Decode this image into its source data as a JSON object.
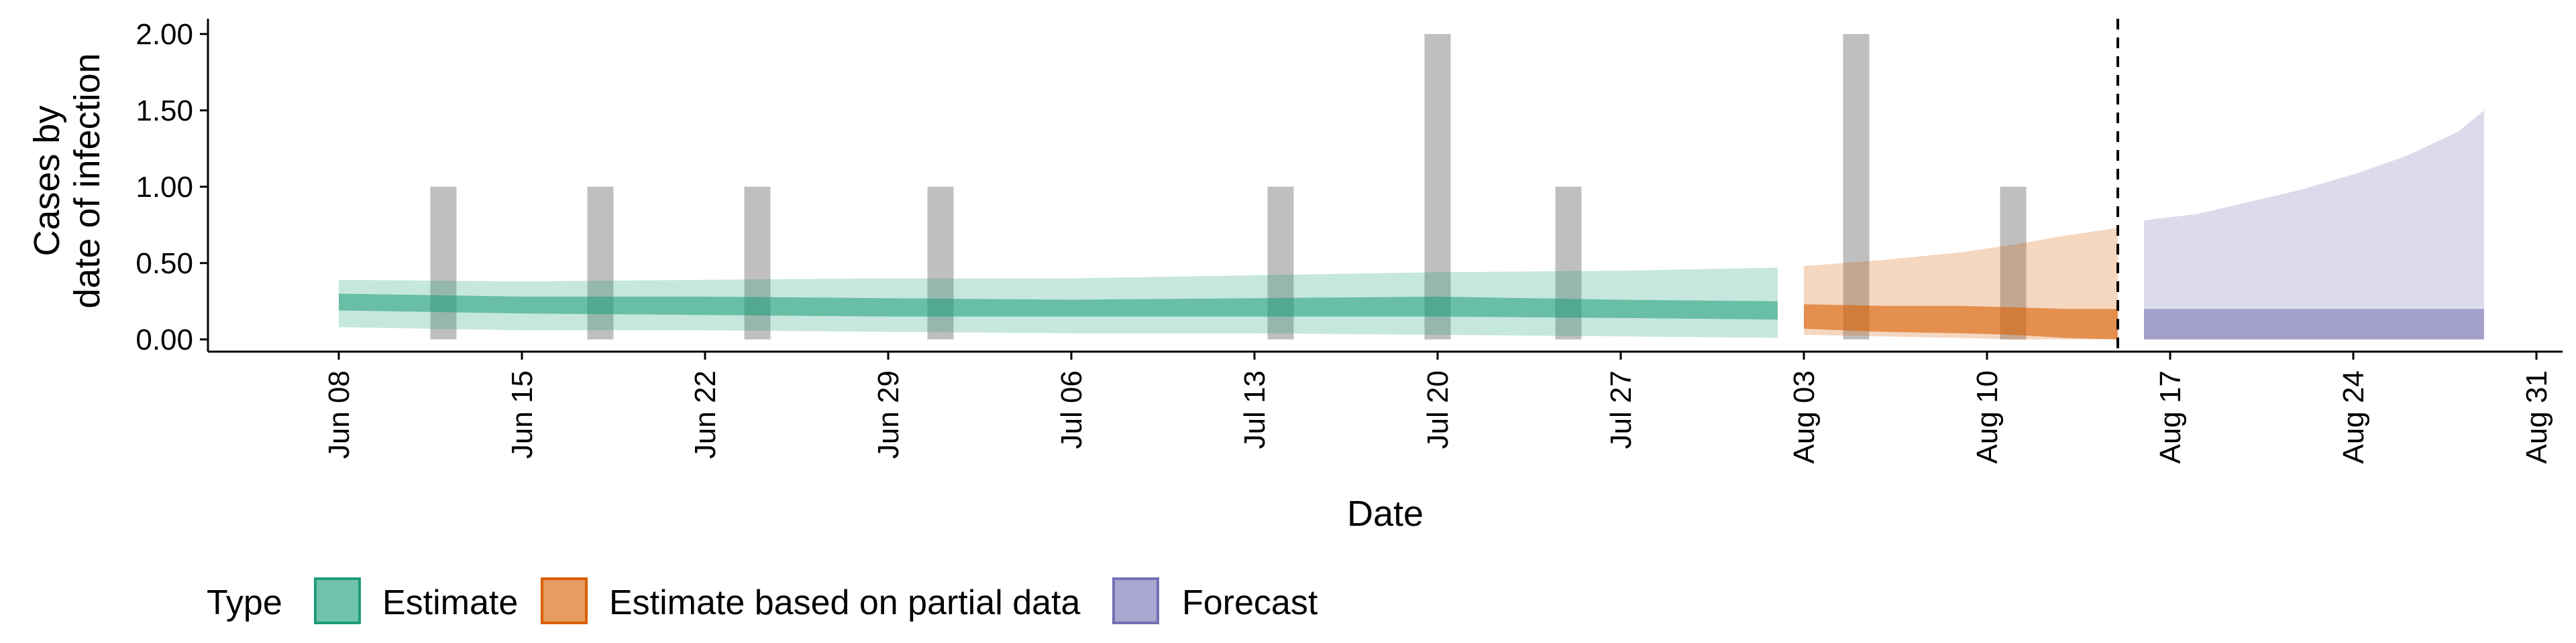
{
  "chart_data": {
    "type": "area",
    "xlabel": "Date",
    "ylabel_lines": [
      "Cases by",
      "date of infection"
    ],
    "ylim": [
      -0.08,
      2.1
    ],
    "x_start": "2020-06-01",
    "x_range": [
      "2020-06-03",
      "2020-09-01"
    ],
    "y_ticks": [
      "0.00",
      "0.50",
      "1.00",
      "1.50",
      "2.00"
    ],
    "x_ticks": [
      {
        "date": "2020-06-08",
        "label": "Jun 08"
      },
      {
        "date": "2020-06-15",
        "label": "Jun 15"
      },
      {
        "date": "2020-06-22",
        "label": "Jun 22"
      },
      {
        "date": "2020-06-29",
        "label": "Jun 29"
      },
      {
        "date": "2020-07-06",
        "label": "Jul 06"
      },
      {
        "date": "2020-07-13",
        "label": "Jul 13"
      },
      {
        "date": "2020-07-20",
        "label": "Jul 20"
      },
      {
        "date": "2020-07-27",
        "label": "Jul 27"
      },
      {
        "date": "2020-08-03",
        "label": "Aug 03"
      },
      {
        "date": "2020-08-10",
        "label": "Aug 10"
      },
      {
        "date": "2020-08-17",
        "label": "Aug 17"
      },
      {
        "date": "2020-08-24",
        "label": "Aug 24"
      },
      {
        "date": "2020-08-31",
        "label": "Aug 31"
      }
    ],
    "reported_cases": [
      {
        "date": "2020-06-12",
        "value": 1
      },
      {
        "date": "2020-06-18",
        "value": 1
      },
      {
        "date": "2020-06-24",
        "value": 1
      },
      {
        "date": "2020-07-01",
        "value": 1
      },
      {
        "date": "2020-07-14",
        "value": 1
      },
      {
        "date": "2020-07-20",
        "value": 2
      },
      {
        "date": "2020-07-25",
        "value": 1
      },
      {
        "date": "2020-08-05",
        "value": 2
      },
      {
        "date": "2020-08-11",
        "value": 1
      }
    ],
    "vline_date": "2020-08-15",
    "series": [
      {
        "name": "Estimate",
        "color": "#1b9e77",
        "outer_alpha": 0.25,
        "inner_alpha": 0.55,
        "x": [
          "2020-06-08",
          "2020-06-15",
          "2020-06-22",
          "2020-06-29",
          "2020-07-06",
          "2020-07-13",
          "2020-07-20",
          "2020-07-27",
          "2020-08-02"
        ],
        "outer_upper": [
          0.39,
          0.38,
          0.39,
          0.4,
          0.4,
          0.42,
          0.44,
          0.45,
          0.47
        ],
        "outer_lower": [
          0.08,
          0.06,
          0.06,
          0.05,
          0.04,
          0.04,
          0.03,
          0.02,
          0.01
        ],
        "inner_upper": [
          0.3,
          0.28,
          0.28,
          0.27,
          0.26,
          0.27,
          0.28,
          0.26,
          0.25
        ],
        "inner_lower": [
          0.19,
          0.17,
          0.16,
          0.15,
          0.15,
          0.15,
          0.15,
          0.14,
          0.13
        ]
      },
      {
        "name": "Estimate based on partial data",
        "color": "#d95f02",
        "outer_alpha": 0.25,
        "inner_alpha": 0.6,
        "x": [
          "2020-08-03",
          "2020-08-06",
          "2020-08-09",
          "2020-08-11",
          "2020-08-13",
          "2020-08-15"
        ],
        "outer_upper": [
          0.48,
          0.52,
          0.57,
          0.62,
          0.68,
          0.73
        ],
        "outer_lower": [
          0.03,
          0.02,
          0.01,
          0.0,
          0.0,
          0.0
        ],
        "inner_upper": [
          0.23,
          0.22,
          0.22,
          0.21,
          0.2,
          0.2
        ],
        "inner_lower": [
          0.07,
          0.05,
          0.04,
          0.03,
          0.01,
          0.0
        ]
      },
      {
        "name": "Forecast",
        "color": "#7570b3",
        "outer_alpha": 0.25,
        "inner_alpha": 0.55,
        "x": [
          "2020-08-16",
          "2020-08-18",
          "2020-08-20",
          "2020-08-22",
          "2020-08-24",
          "2020-08-26",
          "2020-08-28",
          "2020-08-29"
        ],
        "outer_upper": [
          0.78,
          0.82,
          0.9,
          0.98,
          1.08,
          1.2,
          1.36,
          1.5
        ],
        "outer_lower": [
          0.0,
          0.0,
          0.0,
          0.0,
          0.0,
          0.0,
          0.0,
          0.0
        ],
        "inner_upper": [
          0.2,
          0.2,
          0.2,
          0.2,
          0.2,
          0.2,
          0.2,
          0.2
        ],
        "inner_lower": [
          0.0,
          0.0,
          0.0,
          0.0,
          0.0,
          0.0,
          0.0,
          0.0
        ]
      }
    ],
    "legend": {
      "title": "Type",
      "position": "bottom",
      "items": [
        {
          "label": "Estimate",
          "color": "#1b9e77"
        },
        {
          "label": "Estimate based on partial data",
          "color": "#d95f02"
        },
        {
          "label": "Forecast",
          "color": "#7570b3"
        }
      ]
    }
  }
}
